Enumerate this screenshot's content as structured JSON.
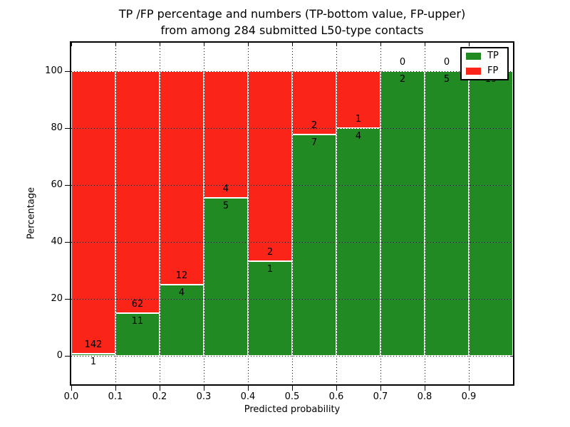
{
  "title": {
    "line1": "TP /FP percentage and numbers (TP-bottom value, FP-upper)",
    "line2": "from among 284 submitted L50-type contacts"
  },
  "chart_data": {
    "type": "bar",
    "stacked": true,
    "normalized_to_percent": true,
    "title": "TP /FP percentage and numbers (TP-bottom value, FP-upper) from among 284 submitted L50-type contacts",
    "xlabel": "Predicted probability",
    "ylabel": "Percentage",
    "bin_start": [
      0.0,
      0.1,
      0.2,
      0.3,
      0.4,
      0.5,
      0.6,
      0.7,
      0.8,
      0.9
    ],
    "bin_width": 0.1,
    "series": [
      {
        "name": "TP",
        "color": "#228a22",
        "values": [
          1,
          11,
          4,
          5,
          1,
          7,
          4,
          2,
          5,
          19
        ]
      },
      {
        "name": "FP",
        "color": "#fa2419",
        "values": [
          142,
          62,
          12,
          4,
          2,
          2,
          1,
          0,
          0,
          0
        ]
      }
    ],
    "tp_percent_of_bin": [
      0.7,
      15.1,
      25.0,
      55.6,
      33.3,
      77.8,
      80.0,
      100.0,
      100.0,
      100.0
    ],
    "xticks": [
      "0.0",
      "0.1",
      "0.2",
      "0.3",
      "0.4",
      "0.5",
      "0.6",
      "0.7",
      "0.8",
      "0.9"
    ],
    "yticks": [
      0,
      20,
      40,
      60,
      80,
      100
    ],
    "xlim": [
      0.0,
      1.0
    ],
    "ylim": [
      -10,
      110
    ],
    "grid": true,
    "grid_style": "dotted",
    "legend": {
      "position": "upper right",
      "entries": [
        {
          "label": "TP",
          "color": "#228a22"
        },
        {
          "label": "FP",
          "color": "#fa2419"
        }
      ]
    }
  }
}
